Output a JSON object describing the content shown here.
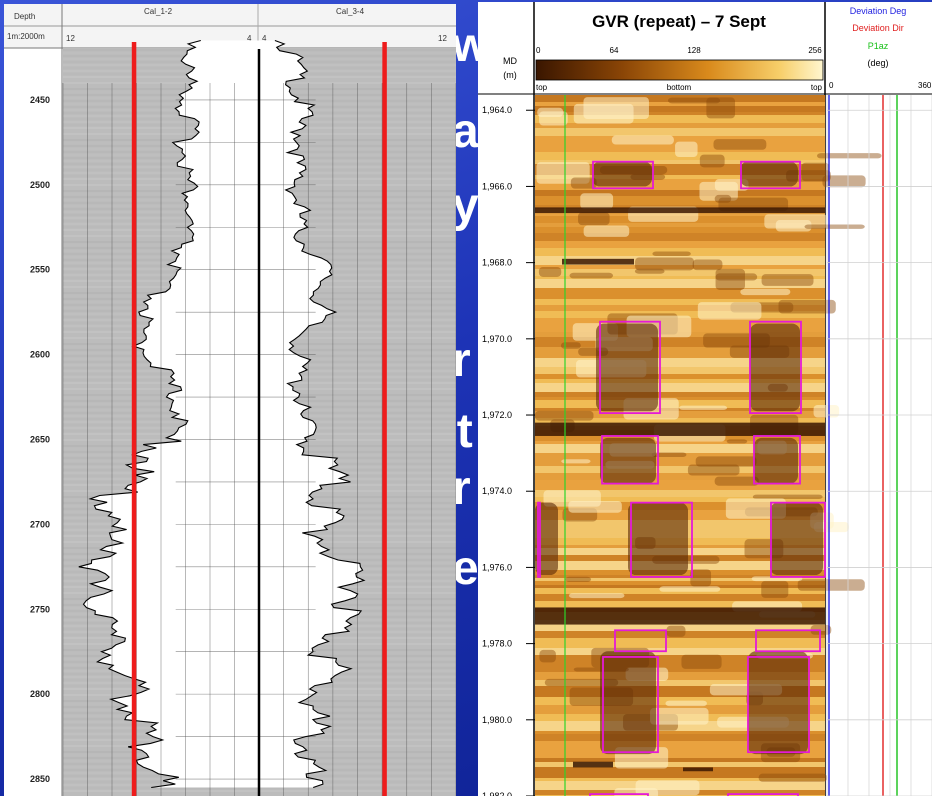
{
  "slide_fragments": [
    "w",
    "a",
    "y",
    "r",
    "st",
    "r",
    "e"
  ],
  "caliper_log": {
    "header": {
      "depth_label": "Depth",
      "scale_label": "1m:2000m",
      "track1_name": "Cal_1-2",
      "track2_name": "Cal_3-4",
      "left_min": "12",
      "left_max": "4",
      "right_min": "4",
      "right_max": "12"
    },
    "chart_data": {
      "type": "line",
      "ylabel": "Depth",
      "depth_ticks": [
        "2450",
        "2500",
        "2550",
        "2600",
        "2650",
        "2700",
        "2750",
        "2800",
        "2850"
      ],
      "depth_range": [
        2420,
        2860
      ],
      "x_range_left": [
        12,
        4
      ],
      "x_range_right": [
        4,
        12
      ],
      "series": [
        {
          "values": [
            [
              2415,
              6.6
            ],
            [
              2425,
              7.1
            ],
            [
              2435,
              7.2
            ],
            [
              2445,
              7.0
            ],
            [
              2455,
              7.3
            ],
            [
              2465,
              7.0
            ],
            [
              2475,
              7.3
            ],
            [
              2485,
              7.1
            ],
            [
              2495,
              7.2
            ],
            [
              2505,
              7.0
            ],
            [
              2515,
              7.1
            ],
            [
              2525,
              7.2
            ],
            [
              2535,
              7.3
            ],
            [
              2545,
              7.6
            ],
            [
              2555,
              8.0
            ],
            [
              2565,
              8.5
            ],
            [
              2575,
              8.8
            ],
            [
              2585,
              9.2
            ],
            [
              2595,
              9.0
            ],
            [
              2605,
              8.3
            ],
            [
              2615,
              8.0
            ],
            [
              2625,
              7.6
            ],
            [
              2635,
              7.4
            ],
            [
              2645,
              7.8
            ],
            [
              2655,
              8.4
            ],
            [
              2665,
              9.2
            ],
            [
              2675,
              9.8
            ],
            [
              2685,
              10.6
            ],
            [
              2695,
              10.2
            ],
            [
              2705,
              10.8
            ],
            [
              2715,
              10.1
            ],
            [
              2725,
              11.0
            ],
            [
              2735,
              11.4
            ],
            [
              2745,
              11.1
            ],
            [
              2755,
              10.4
            ],
            [
              2765,
              10.8
            ],
            [
              2775,
              10.0
            ],
            [
              2785,
              10.5
            ],
            [
              2795,
              9.7
            ],
            [
              2805,
              9.6
            ],
            [
              2815,
              9.4
            ],
            [
              2825,
              9.1
            ],
            [
              2835,
              8.8
            ],
            [
              2845,
              8.6
            ],
            [
              2855,
              8.4
            ]
          ]
        },
        {
          "values": [
            [
              2415,
              5.2
            ],
            [
              2425,
              5.6
            ],
            [
              2435,
              5.8
            ],
            [
              2445,
              5.7
            ],
            [
              2455,
              6.1
            ],
            [
              2465,
              5.8
            ],
            [
              2475,
              6.0
            ],
            [
              2485,
              5.7
            ],
            [
              2495,
              5.8
            ],
            [
              2505,
              5.7
            ],
            [
              2515,
              5.9
            ],
            [
              2525,
              5.8
            ],
            [
              2535,
              6.1
            ],
            [
              2545,
              6.8
            ],
            [
              2555,
              6.9
            ],
            [
              2565,
              6.6
            ],
            [
              2575,
              6.9
            ],
            [
              2585,
              6.1
            ],
            [
              2595,
              5.8
            ],
            [
              2605,
              5.9
            ],
            [
              2615,
              5.7
            ],
            [
              2625,
              6.0
            ],
            [
              2635,
              5.8
            ],
            [
              2645,
              6.4
            ],
            [
              2655,
              6.6
            ],
            [
              2665,
              7.2
            ],
            [
              2675,
              7.4
            ],
            [
              2685,
              7.0
            ],
            [
              2695,
              7.3
            ],
            [
              2705,
              6.8
            ],
            [
              2715,
              7.5
            ],
            [
              2725,
              7.7
            ],
            [
              2735,
              8.6
            ],
            [
              2745,
              8.4
            ],
            [
              2755,
              7.8
            ],
            [
              2765,
              7.6
            ],
            [
              2775,
              7.2
            ],
            [
              2785,
              7.4
            ],
            [
              2795,
              7.0
            ],
            [
              2805,
              6.7
            ],
            [
              2815,
              6.5
            ],
            [
              2825,
              6.6
            ],
            [
              2835,
              6.4
            ],
            [
              2845,
              6.3
            ],
            [
              2855,
              6.2
            ]
          ]
        }
      ],
      "reference_lines": [
        9.1,
        9.1
      ],
      "colors": {
        "fill": "#bcbcbc",
        "curve": "#000000",
        "reference": "#ee1c1c"
      }
    }
  },
  "gvr_log": {
    "title": "GVR (repeat) – 7 Sept",
    "md_label": "MD",
    "unit_label": "(m)",
    "scale_ticks": [
      "0",
      "64",
      "128",
      "256"
    ],
    "orientation_labels": [
      "top",
      "bottom",
      "top"
    ],
    "deviation_header": {
      "line1": "Deviation Deg",
      "line2": "Deviation Dir",
      "line3": "P1az",
      "unit": "(deg)",
      "min": "0",
      "max": "360"
    },
    "colors": {
      "deviation_deg": "#1f1fe0",
      "deviation_dir": "#e01f1f",
      "p1az": "#18c018",
      "box": "#e41ad6"
    },
    "chart_data": {
      "type": "heatmap",
      "depth_range": [
        1963.6,
        1982.0
      ],
      "depth_ticks": [
        "1,964.0",
        "1,966.0",
        "1,968.0",
        "1,970.0",
        "1,972.0",
        "1,974.0",
        "1,976.0",
        "1,978.0",
        "1,980.0",
        "1,982.0"
      ],
      "color_scale": [
        0,
        256
      ]
    }
  }
}
